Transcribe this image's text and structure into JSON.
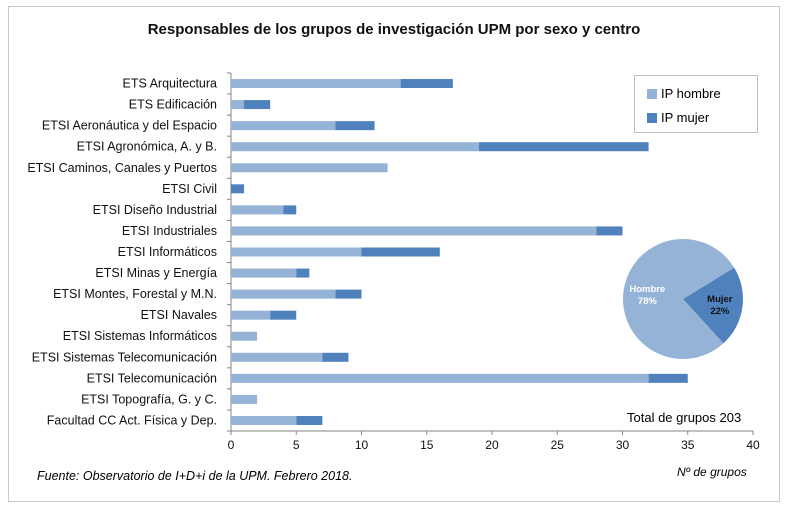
{
  "chart_data": {
    "type": "bar",
    "orientation": "horizontal",
    "stacked": true,
    "title": "Responsables de los grupos de investigación UPM por sexo y centro",
    "xlabel": "Nº de grupos",
    "xlim": [
      0,
      40
    ],
    "xticks": [
      0,
      5,
      10,
      15,
      20,
      25,
      30,
      35,
      40
    ],
    "grid": false,
    "legend_position": "top-right",
    "categories": [
      "ETS Arquitectura",
      "ETS Edificación",
      "ETSI Aeronáutica y del Espacio",
      "ETSI Agronómica, A. y B.",
      "ETSI Caminos, Canales y Puertos",
      "ETSI Civil",
      "ETSI Diseño Industrial",
      "ETSI Industriales",
      "ETSI Informáticos",
      "ETSI Minas y Energía",
      "ETSI Montes, Forestal y M.N.",
      "ETSI Navales",
      "ETSI Sistemas Informáticos",
      "ETSI Sistemas Telecomunicación",
      "ETSI Telecomunicación",
      "ETSI Topografía, G. y C.",
      "Facultad CC Act. Física y Dep."
    ],
    "series": [
      {
        "name": "IP hombre",
        "color": "#95b3d7",
        "values": [
          13,
          1,
          8,
          19,
          12,
          0,
          4,
          28,
          10,
          5,
          8,
          3,
          2,
          7,
          32,
          2,
          5
        ]
      },
      {
        "name": "IP mujer",
        "color": "#4f81bd",
        "values": [
          4,
          2,
          3,
          13,
          0,
          1,
          1,
          2,
          6,
          1,
          2,
          2,
          0,
          2,
          3,
          0,
          2
        ]
      }
    ],
    "pie": {
      "slices": [
        {
          "label": "Hombre",
          "percent": "78%",
          "value": 78,
          "color": "#95b3d7"
        },
        {
          "label": "Mujer",
          "percent": "22%",
          "value": 22,
          "color": "#4f81bd"
        }
      ]
    },
    "total_note": "Total de grupos 203",
    "source": "Fuente: Observatorio de I+D+i de la UPM. Febrero 2018."
  }
}
